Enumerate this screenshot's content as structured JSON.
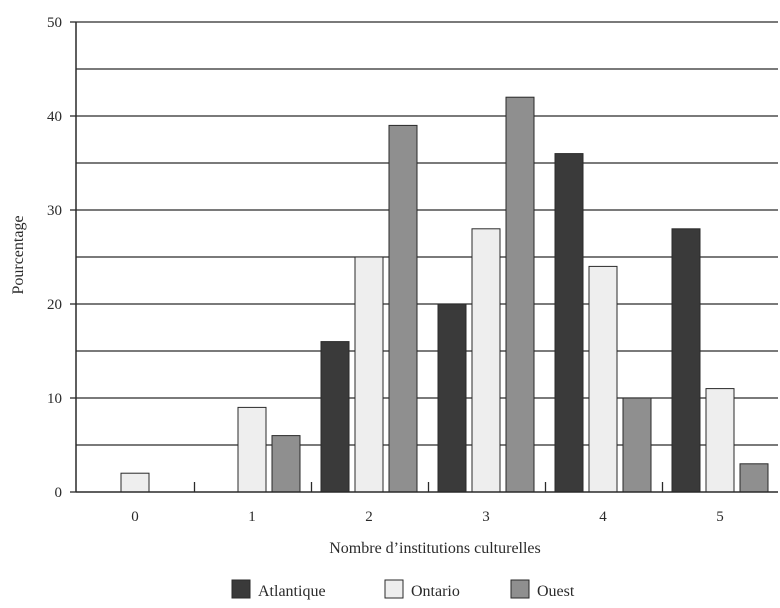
{
  "chart_data": {
    "type": "bar",
    "title": "",
    "xlabel": "Nombre d’institutions culturelles",
    "ylabel": "Pourcentage",
    "categories": [
      "0",
      "1",
      "2",
      "3",
      "4",
      "5"
    ],
    "ylim": [
      0,
      50
    ],
    "yticks": [
      "0",
      "10",
      "20",
      "30",
      "40",
      "50"
    ],
    "grid": true,
    "legend_position": "bottom",
    "series": [
      {
        "name": "Atlantique",
        "color": "#3a3a3a",
        "values": [
          0,
          0,
          16,
          20,
          36,
          28
        ]
      },
      {
        "name": "Ontario",
        "color": "#eeeeee",
        "values": [
          2,
          9,
          25,
          28,
          24,
          11
        ]
      },
      {
        "name": "Ouest",
        "color": "#8f8f8f",
        "values": [
          0,
          6,
          39,
          42,
          10,
          3
        ]
      }
    ]
  }
}
